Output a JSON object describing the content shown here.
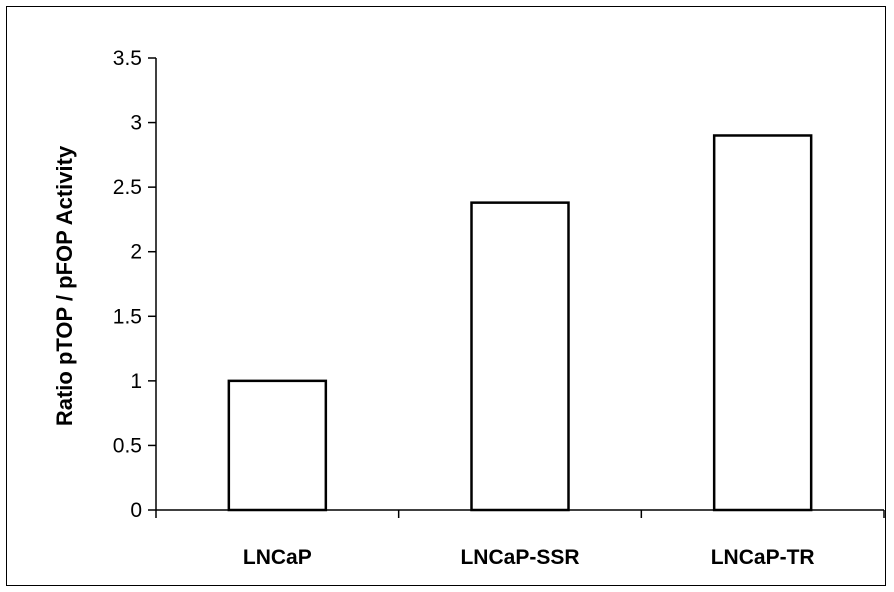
{
  "chart_data": {
    "type": "bar",
    "title": "",
    "xlabel": "",
    "ylabel": "Ratio pTOP / pFOP Activity",
    "categories": [
      "LNCaP",
      "LNCaP-SSR",
      "LNCaP-TR"
    ],
    "values": [
      1.0,
      2.38,
      2.9
    ],
    "ylim": [
      0,
      3.5
    ],
    "yticks": [
      0,
      0.5,
      1,
      1.5,
      2,
      2.5,
      3,
      3.5
    ],
    "ytick_labels": [
      "0",
      "0.5",
      "1",
      "1.5",
      "2",
      "2.5",
      "3",
      "3.5"
    ],
    "grid": false,
    "legend": "none",
    "bar_fill": "#ffffff",
    "bar_stroke": "#000000"
  }
}
